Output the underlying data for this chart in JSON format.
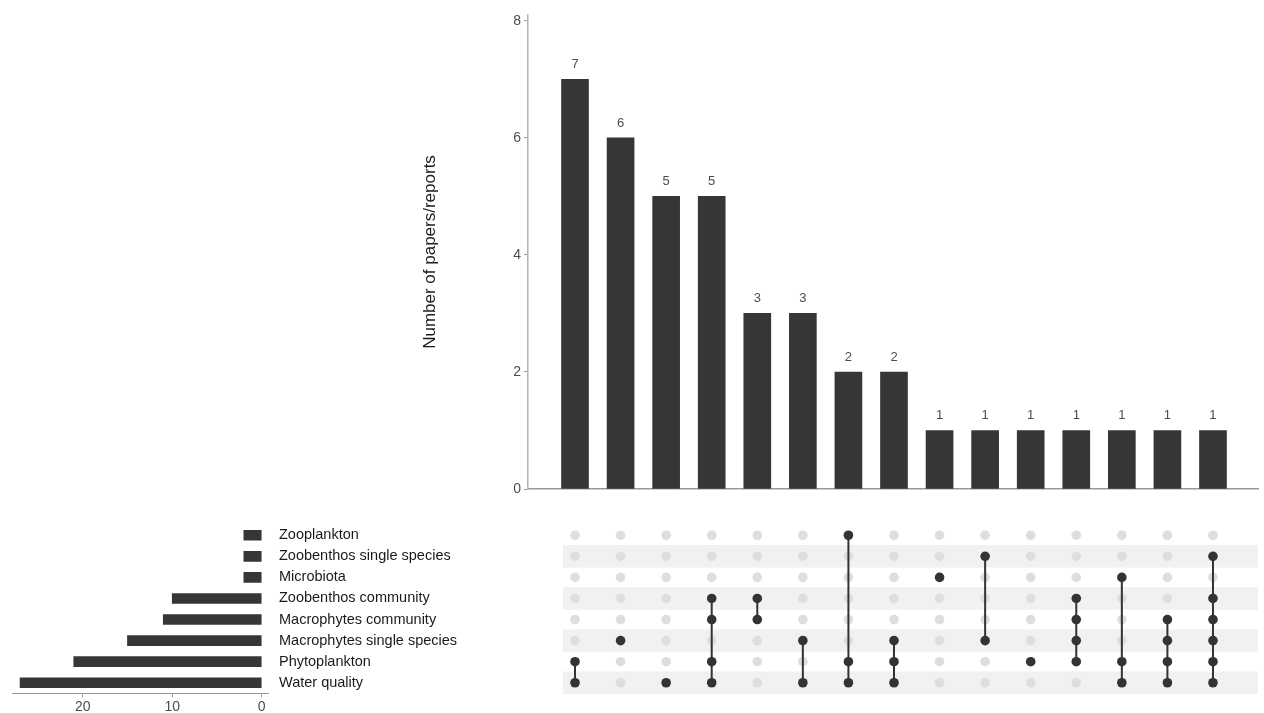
{
  "chart_data": [
    {
      "type": "bar",
      "ylabel": "Number of papers/reports",
      "categories": [
        null,
        null,
        null,
        null,
        null,
        null,
        null,
        null,
        null,
        null,
        null,
        null,
        null,
        null,
        null
      ],
      "values": [
        7,
        6,
        5,
        5,
        3,
        3,
        2,
        2,
        1,
        1,
        1,
        1,
        1,
        1,
        1
      ],
      "color": "#363636",
      "ylim": [
        0,
        8.1
      ],
      "yticks": [
        0,
        2,
        4,
        6,
        8
      ],
      "data_labels": true
    },
    {
      "type": "bar",
      "orientation": "horizontal",
      "categories": [
        "Zooplankton",
        "Zoobenthos single species",
        "Microbiota",
        "Zoobenthos community",
        "Macrophytes community",
        "Macrophytes single species",
        "Phytoplankton",
        "Water quality"
      ],
      "values": [
        2,
        2,
        2,
        10,
        11,
        15,
        21,
        27
      ],
      "color": "#363636",
      "xlim": [
        27.9,
        -0.7
      ],
      "xticks": [
        20,
        10,
        0
      ]
    }
  ]
}
